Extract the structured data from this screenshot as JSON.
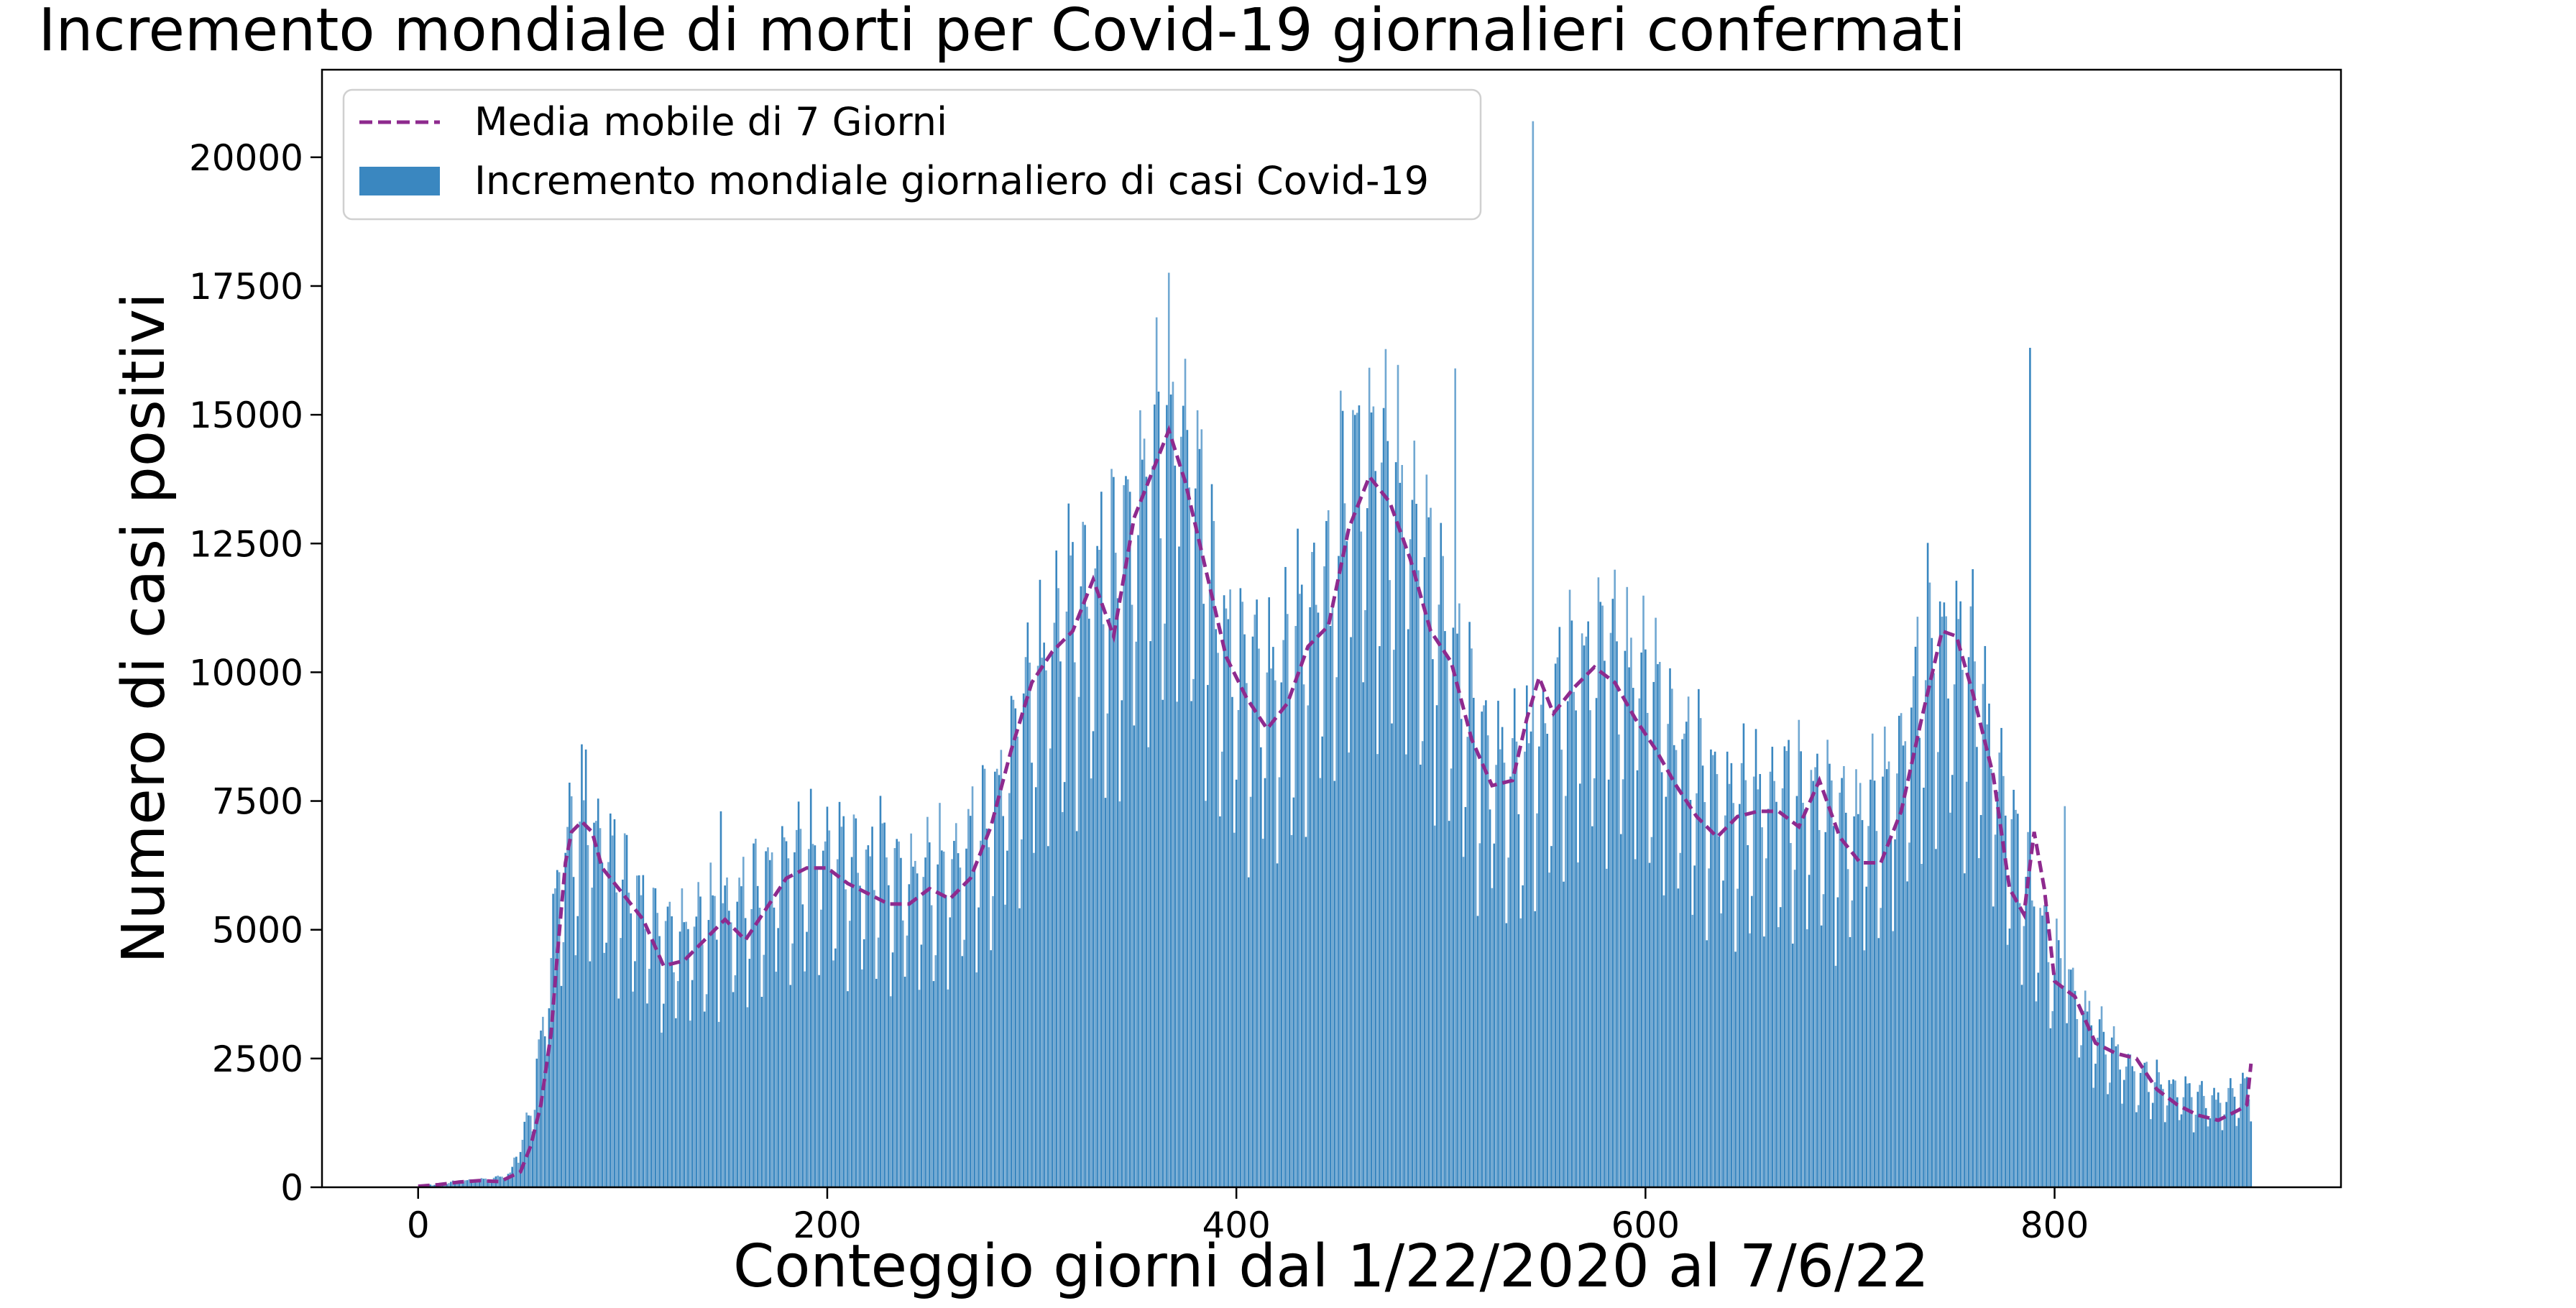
{
  "chart_data": {
    "type": "bar",
    "title": "Incremento mondiale di morti per Covid-19 giornalieri confermati",
    "xlabel": "Conteggio giorni dal 1/22/2020 al 7/6/22",
    "ylabel": "Numero di casi positivi",
    "xlim": [
      -47,
      940
    ],
    "ylim": [
      0,
      21700
    ],
    "x_ticks": [
      0,
      200,
      400,
      600,
      800
    ],
    "y_ticks": [
      0,
      2500,
      5000,
      7500,
      10000,
      12500,
      15000,
      17500,
      20000
    ],
    "grid": false,
    "legend_position": "top-left",
    "series": [
      {
        "name": "Incremento mondiale giornaliero di casi Covid-19",
        "type": "bar",
        "color": "#3a87c0",
        "day_range": [
          0,
          896
        ],
        "envelope": [
          [
            0,
            20
          ],
          [
            20,
            120
          ],
          [
            35,
            150
          ],
          [
            45,
            250
          ],
          [
            55,
            1400
          ],
          [
            62,
            3200
          ],
          [
            68,
            5600
          ],
          [
            75,
            6500
          ],
          [
            82,
            6800
          ],
          [
            90,
            6300
          ],
          [
            100,
            5700
          ],
          [
            110,
            5200
          ],
          [
            120,
            4600
          ],
          [
            140,
            4900
          ],
          [
            160,
            5300
          ],
          [
            180,
            6000
          ],
          [
            200,
            6200
          ],
          [
            220,
            5900
          ],
          [
            240,
            5700
          ],
          [
            260,
            5900
          ],
          [
            280,
            6800
          ],
          [
            300,
            9200
          ],
          [
            320,
            10800
          ],
          [
            340,
            11300
          ],
          [
            360,
            13400
          ],
          [
            370,
            14300
          ],
          [
            380,
            12900
          ],
          [
            390,
            10600
          ],
          [
            400,
            9600
          ],
          [
            420,
            9400
          ],
          [
            440,
            10900
          ],
          [
            460,
            13500
          ],
          [
            480,
            12800
          ],
          [
            500,
            10600
          ],
          [
            520,
            8100
          ],
          [
            540,
            7600
          ],
          [
            560,
            9100
          ],
          [
            580,
            9900
          ],
          [
            600,
            9300
          ],
          [
            620,
            7900
          ],
          [
            640,
            7100
          ],
          [
            660,
            7200
          ],
          [
            680,
            7300
          ],
          [
            700,
            6700
          ],
          [
            720,
            7300
          ],
          [
            740,
            10100
          ],
          [
            760,
            9600
          ],
          [
            780,
            6400
          ],
          [
            800,
            4200
          ],
          [
            820,
            2900
          ],
          [
            840,
            2100
          ],
          [
            860,
            1800
          ],
          [
            880,
            1600
          ],
          [
            896,
            1900
          ]
        ],
        "spikes": [
          [
            82,
            8500
          ],
          [
            148,
            7300
          ],
          [
            226,
            7600
          ],
          [
            446,
            10900
          ],
          [
            502,
            10800
          ],
          [
            507,
            15900
          ],
          [
            545,
            20700
          ],
          [
            788,
            16300
          ],
          [
            805,
            7400
          ]
        ]
      },
      {
        "name": "Media mobile di 7 Giorni",
        "type": "line",
        "style": "dashed",
        "color": "#8e2a8e",
        "points": [
          [
            0,
            20
          ],
          [
            10,
            50
          ],
          [
            20,
            100
          ],
          [
            30,
            130
          ],
          [
            40,
            110
          ],
          [
            50,
            300
          ],
          [
            55,
            800
          ],
          [
            60,
            1600
          ],
          [
            65,
            3000
          ],
          [
            68,
            4500
          ],
          [
            72,
            6300
          ],
          [
            75,
            6900
          ],
          [
            80,
            7100
          ],
          [
            85,
            6900
          ],
          [
            90,
            6200
          ],
          [
            100,
            5700
          ],
          [
            110,
            5200
          ],
          [
            120,
            4300
          ],
          [
            130,
            4400
          ],
          [
            140,
            4800
          ],
          [
            150,
            5200
          ],
          [
            160,
            4800
          ],
          [
            170,
            5400
          ],
          [
            180,
            6000
          ],
          [
            190,
            6200
          ],
          [
            200,
            6200
          ],
          [
            210,
            5900
          ],
          [
            220,
            5700
          ],
          [
            230,
            5500
          ],
          [
            240,
            5500
          ],
          [
            250,
            5800
          ],
          [
            260,
            5600
          ],
          [
            270,
            6000
          ],
          [
            280,
            7000
          ],
          [
            290,
            8500
          ],
          [
            300,
            9800
          ],
          [
            310,
            10400
          ],
          [
            320,
            10800
          ],
          [
            330,
            11800
          ],
          [
            340,
            10700
          ],
          [
            350,
            13000
          ],
          [
            360,
            14000
          ],
          [
            367,
            14700
          ],
          [
            375,
            13700
          ],
          [
            385,
            12000
          ],
          [
            395,
            10300
          ],
          [
            405,
            9500
          ],
          [
            415,
            8900
          ],
          [
            425,
            9400
          ],
          [
            435,
            10500
          ],
          [
            445,
            10900
          ],
          [
            455,
            12800
          ],
          [
            465,
            13800
          ],
          [
            475,
            13300
          ],
          [
            485,
            12200
          ],
          [
            495,
            10800
          ],
          [
            505,
            10200
          ],
          [
            515,
            8700
          ],
          [
            525,
            7800
          ],
          [
            535,
            7900
          ],
          [
            542,
            9100
          ],
          [
            548,
            9900
          ],
          [
            555,
            9200
          ],
          [
            565,
            9700
          ],
          [
            575,
            10100
          ],
          [
            585,
            9800
          ],
          [
            595,
            9100
          ],
          [
            605,
            8500
          ],
          [
            615,
            7800
          ],
          [
            625,
            7200
          ],
          [
            635,
            6800
          ],
          [
            645,
            7200
          ],
          [
            655,
            7300
          ],
          [
            665,
            7300
          ],
          [
            675,
            7000
          ],
          [
            685,
            7900
          ],
          [
            695,
            6800
          ],
          [
            705,
            6300
          ],
          [
            715,
            6300
          ],
          [
            725,
            7300
          ],
          [
            735,
            9100
          ],
          [
            745,
            10800
          ],
          [
            752,
            10700
          ],
          [
            760,
            9600
          ],
          [
            770,
            8000
          ],
          [
            778,
            5800
          ],
          [
            785,
            5300
          ],
          [
            790,
            6900
          ],
          [
            795,
            5800
          ],
          [
            800,
            4000
          ],
          [
            810,
            3700
          ],
          [
            820,
            2800
          ],
          [
            830,
            2600
          ],
          [
            840,
            2500
          ],
          [
            850,
            1900
          ],
          [
            860,
            1600
          ],
          [
            870,
            1400
          ],
          [
            880,
            1300
          ],
          [
            890,
            1500
          ],
          [
            894,
            1600
          ],
          [
            896,
            2400
          ]
        ]
      }
    ]
  }
}
